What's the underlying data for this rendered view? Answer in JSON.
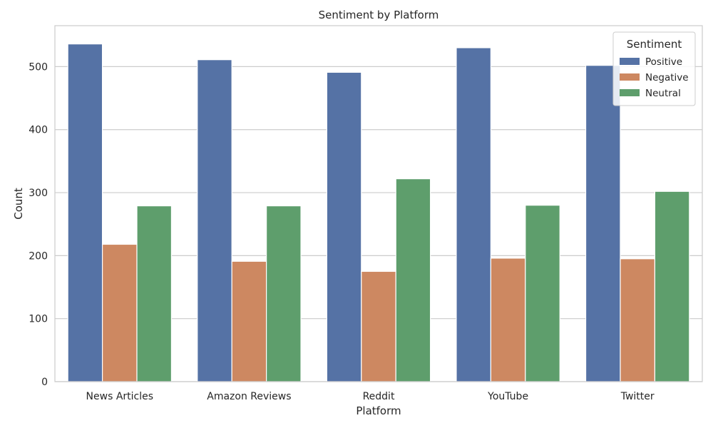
{
  "chart_data": {
    "type": "bar",
    "title": "Sentiment by Platform",
    "xlabel": "Platform",
    "ylabel": "Count",
    "categories": [
      "News Articles",
      "Amazon Reviews",
      "Reddit",
      "YouTube",
      "Twitter"
    ],
    "series": [
      {
        "name": "Positive",
        "color": "#5572a5",
        "values": [
          536,
          511,
          491,
          530,
          502
        ]
      },
      {
        "name": "Negative",
        "color": "#cd8861",
        "values": [
          218,
          191,
          175,
          196,
          195
        ]
      },
      {
        "name": "Neutral",
        "color": "#5e9e6c",
        "values": [
          279,
          279,
          322,
          280,
          302
        ]
      }
    ],
    "ylim": [
      0,
      565
    ],
    "yticks": [
      0,
      100,
      200,
      300,
      400,
      500
    ],
    "grid": true,
    "legend": {
      "title": "Sentiment",
      "position": "top-right"
    }
  }
}
